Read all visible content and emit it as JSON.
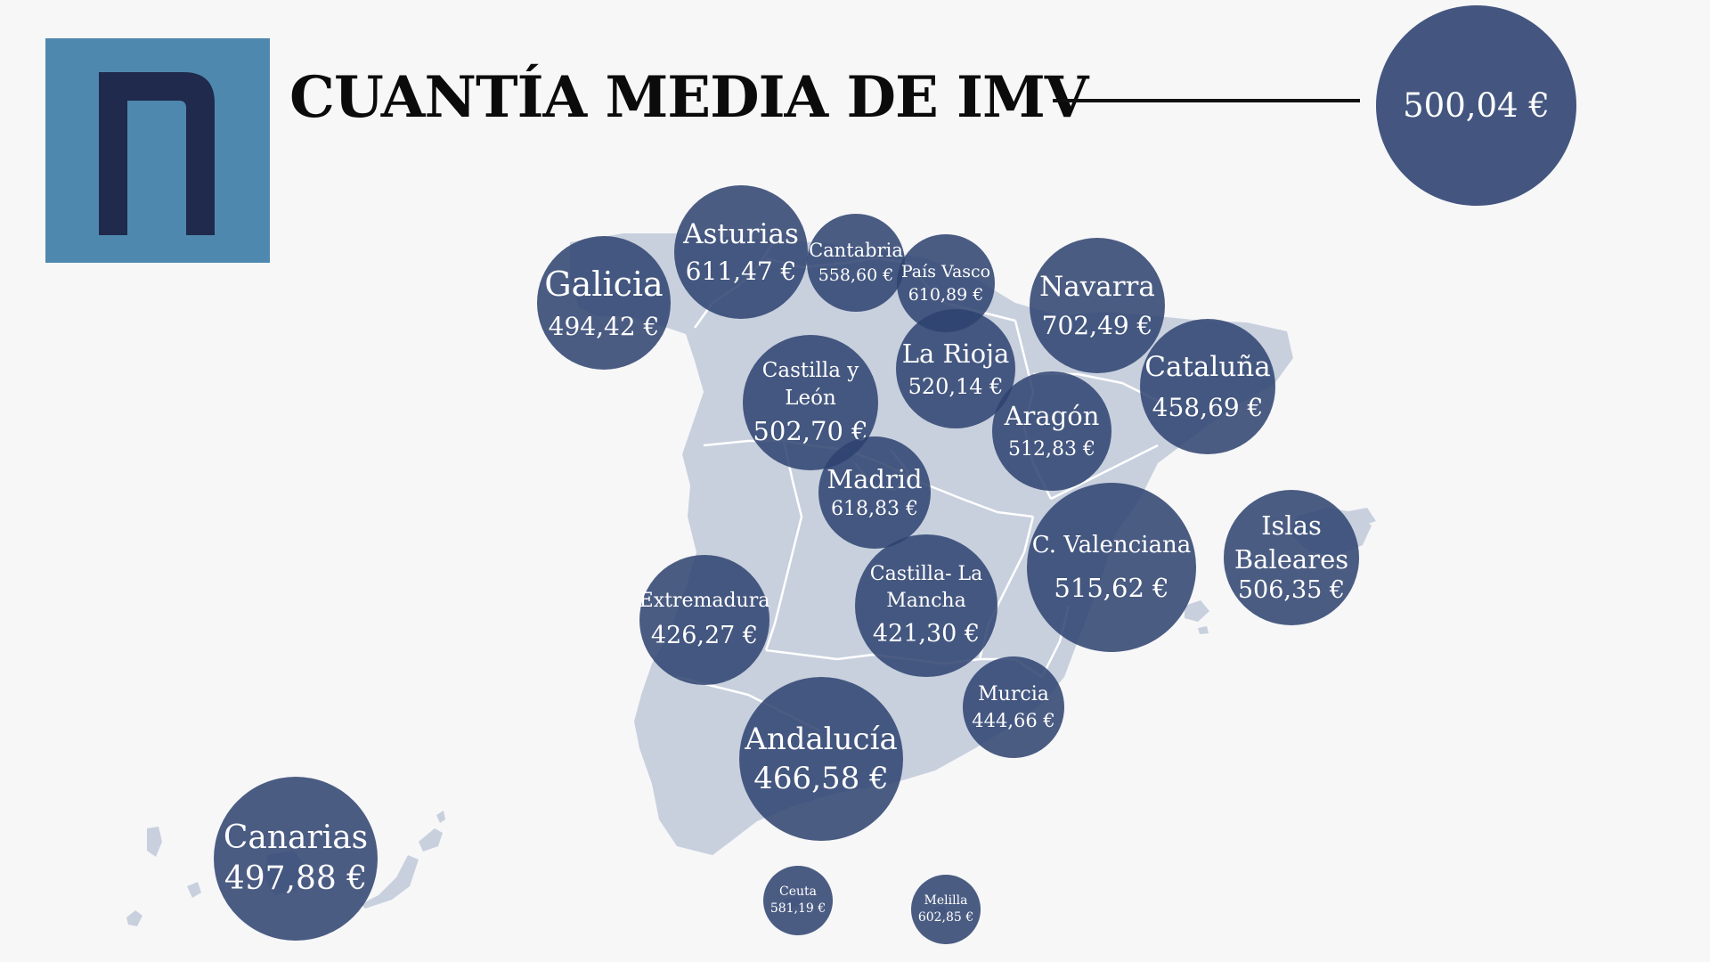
{
  "title": "CUANTÍA MEDIA DE IMV",
  "total": "500,04 €",
  "colors": {
    "background": "#f7f7f8",
    "logo_bg": "#4f88ae",
    "logo_mark": "#1f2a4c",
    "map_fill": "#c8d0de",
    "map_border": "#ffffff",
    "bubble": "#2f4270"
  },
  "regions": {
    "galicia": {
      "name": "Galicia",
      "value": "494,42 €"
    },
    "asturias": {
      "name": "Asturias",
      "value": "611,47 €"
    },
    "cantabria": {
      "name": "Cantabria",
      "value": "558,60 €"
    },
    "pais_vasco": {
      "name": "País Vasco",
      "value": "610,89 €"
    },
    "navarra": {
      "name": "Navarra",
      "value": "702,49 €"
    },
    "la_rioja": {
      "name": "La Rioja",
      "value": "520,14 €"
    },
    "castilla_leon": {
      "name_line1": "Castilla y",
      "name_line2": "León",
      "value": "502,70 €"
    },
    "cataluna": {
      "name": "Cataluña",
      "value": "458,69 €"
    },
    "aragon": {
      "name": "Aragón",
      "value": "512,83 €"
    },
    "madrid": {
      "name": "Madrid",
      "value": "618,83 €"
    },
    "islas_baleares": {
      "name_line1": "Islas",
      "name_line2": "Baleares",
      "value": "506,35 €"
    },
    "c_valenciana": {
      "name": "C. Valenciana",
      "value": "515,62 €"
    },
    "extremadura": {
      "name": "Extremadura",
      "value": "426,27 €"
    },
    "castilla_la_mancha": {
      "name_line1": "Castilla- La",
      "name_line2": "Mancha",
      "value": "421,30 €"
    },
    "murcia": {
      "name": "Murcia",
      "value": "444,66 €"
    },
    "andalucia": {
      "name": "Andalucía",
      "value": "466,58 €"
    },
    "canarias": {
      "name": "Canarias",
      "value": "497,88 €"
    },
    "ceuta": {
      "name": "Ceuta",
      "value": "581,19 €"
    },
    "melilla": {
      "name": "Melilla",
      "value": "602,85 €"
    }
  }
}
